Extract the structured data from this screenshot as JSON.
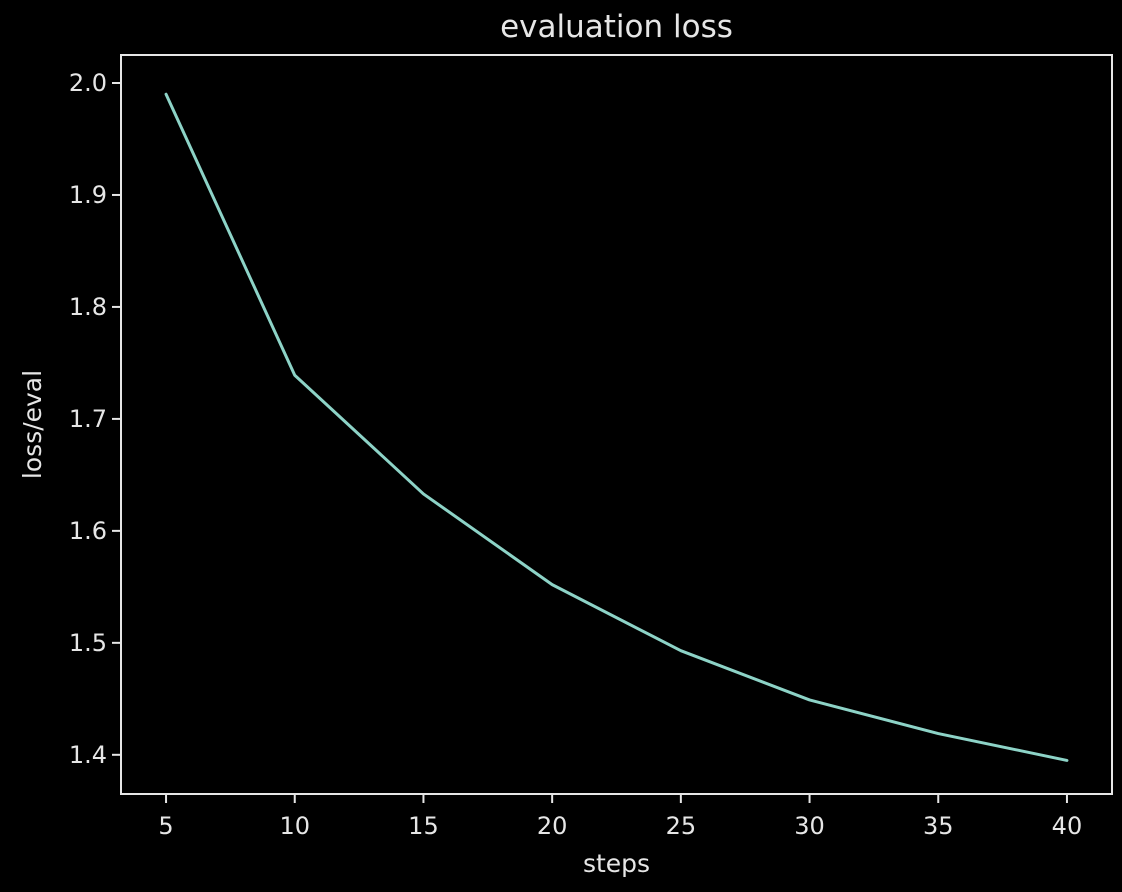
{
  "chart_data": {
    "type": "line",
    "title": "evaluation loss",
    "xlabel": "steps",
    "ylabel": "loss/eval",
    "x": [
      5,
      10,
      15,
      20,
      25,
      30,
      35,
      40
    ],
    "series": [
      {
        "values": [
          1.99,
          1.739,
          1.633,
          1.552,
          1.493,
          1.449,
          1.419,
          1.395
        ]
      }
    ],
    "xlim": [
      3.25,
      41.75
    ],
    "ylim": [
      1.365,
      2.025
    ],
    "xticks": [
      5,
      10,
      15,
      20,
      25,
      30,
      35,
      40
    ],
    "xtick_labels": [
      "5",
      "10",
      "15",
      "20",
      "25",
      "30",
      "35",
      "40"
    ],
    "yticks": [
      1.4,
      1.5,
      1.6,
      1.7,
      1.8,
      1.9,
      2.0
    ],
    "ytick_labels": [
      "1.4",
      "1.5",
      "1.6",
      "1.7",
      "1.8",
      "1.9",
      "2.0"
    ],
    "grid": false,
    "colors": {
      "background": "#000000",
      "axes": "#e6e6e6",
      "line": "#8dd3c7"
    }
  }
}
